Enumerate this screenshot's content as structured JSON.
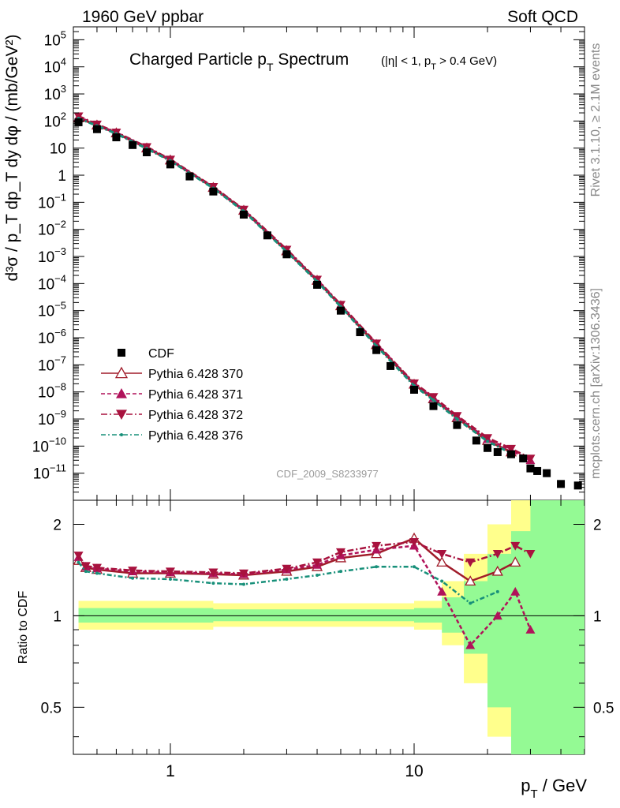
{
  "header": {
    "left": "1960 GeV ppbar",
    "right": "Soft QCD"
  },
  "side_texts": {
    "rivet": "Rivet 3.1.10, ≥ 2.1M events",
    "mcplots": "mcplots.cern.ch [arXiv:1306.3436]"
  },
  "chart_data": [
    {
      "type": "scatter",
      "title": "Charged Particle p_T Spectrum",
      "title_main": "Charged Particle p",
      "title_sub_T": "T",
      "title_suffix": " Spectrum",
      "title_cut": "(|η| < 1, p",
      "title_cut_sub": "T",
      "title_cut_end": " > 0.4 GeV)",
      "ylabel": "d³σ / p_T dp_T dy dφ / (mb/GeV²)",
      "xscale": "log",
      "yscale": "log",
      "xlim": [
        0.4,
        50
      ],
      "ylim": [
        1e-12,
        300000.0
      ],
      "x_ticks": [
        {
          "v": 1,
          "label": "1"
        },
        {
          "v": 10,
          "label": "10"
        }
      ],
      "y_ticks": [
        {
          "v": 100000.0,
          "base": "10",
          "exp": "5"
        },
        {
          "v": 10000.0,
          "base": "10",
          "exp": "4"
        },
        {
          "v": 1000.0,
          "base": "10",
          "exp": "3"
        },
        {
          "v": 100.0,
          "base": "10",
          "exp": "2"
        },
        {
          "v": 10,
          "base": "10",
          "exp": ""
        },
        {
          "v": 1,
          "base": "1",
          "exp": ""
        },
        {
          "v": 0.1,
          "base": "10",
          "exp": "−1"
        },
        {
          "v": 0.01,
          "base": "10",
          "exp": "−2"
        },
        {
          "v": 0.001,
          "base": "10",
          "exp": "−3"
        },
        {
          "v": 0.0001,
          "base": "10",
          "exp": "−4"
        },
        {
          "v": 1e-05,
          "base": "10",
          "exp": "−5"
        },
        {
          "v": 1e-06,
          "base": "10",
          "exp": "−6"
        },
        {
          "v": 1e-07,
          "base": "10",
          "exp": "−7"
        },
        {
          "v": 1e-08,
          "base": "10",
          "exp": "−8"
        },
        {
          "v": 1e-09,
          "base": "10",
          "exp": "−9"
        },
        {
          "v": 1e-10,
          "base": "10",
          "exp": "−10"
        },
        {
          "v": 1e-11,
          "base": "10",
          "exp": "−11"
        }
      ],
      "watermark": "CDF_2009_S8233977",
      "legend_position": "bottom-left",
      "series": [
        {
          "name": "CDF",
          "color": "#000000",
          "marker": "square",
          "x": [
            0.42,
            0.5,
            0.6,
            0.7,
            0.8,
            1.0,
            1.2,
            1.5,
            2.0,
            2.5,
            3.0,
            4.0,
            5.0,
            6.0,
            7.0,
            8.0,
            10.0,
            12.0,
            15.0,
            18.0,
            20.0,
            22.0,
            25.0,
            28.0,
            30.0,
            32.0,
            35.0,
            40.0,
            47.0
          ],
          "y": [
            90,
            50,
            25,
            13,
            7,
            2.5,
            0.9,
            0.25,
            0.035,
            0.006,
            0.0012,
            9e-05,
            1e-05,
            1.6e-06,
            3.5e-07,
            9e-08,
            1.2e-08,
            3e-09,
            6e-10,
            1.6e-10,
            8.5e-11,
            6e-11,
            5e-11,
            3.5e-11,
            1.5e-11,
            1.2e-11,
            1e-11,
            4e-12,
            3.5e-12
          ]
        },
        {
          "name": "Pythia 6.428 370",
          "color": "#a01c2a",
          "marker": "triangle-up-open",
          "x": [
            0.42,
            0.5,
            0.6,
            0.8,
            1.0,
            1.5,
            2.0,
            3.0,
            4.0,
            5.0,
            7.0,
            10.0,
            12.0,
            15.0,
            20.0,
            25.0
          ],
          "y": [
            130,
            70,
            36,
            10,
            3.6,
            0.35,
            0.05,
            0.0016,
            0.00013,
            1.5e-05,
            5.5e-07,
            1.9e-08,
            5.5e-09,
            1.1e-09,
            1.6e-10,
            6e-11
          ]
        },
        {
          "name": "Pythia 6.428 371",
          "color": "#b0125a",
          "marker": "triangle-up",
          "x": [
            0.42,
            0.5,
            0.6,
            0.8,
            1.0,
            1.5,
            2.0,
            3.0,
            4.0,
            5.0,
            7.0,
            10.0,
            12.0,
            15.0,
            20.0,
            25.0,
            30.0
          ],
          "y": [
            140,
            72,
            37,
            10.5,
            3.7,
            0.36,
            0.052,
            0.0017,
            0.000135,
            1.6e-05,
            6e-07,
            2e-08,
            6e-09,
            1.2e-09,
            1.8e-10,
            7e-11,
            3e-11
          ]
        },
        {
          "name": "Pythia 6.428 372",
          "color": "#a8123e",
          "marker": "triangle-down",
          "x": [
            0.42,
            0.5,
            0.6,
            0.8,
            1.0,
            1.5,
            2.0,
            3.0,
            4.0,
            5.0,
            7.0,
            10.0,
            12.0,
            15.0,
            20.0,
            25.0,
            30.0
          ],
          "y": [
            150,
            75,
            38,
            11,
            3.8,
            0.37,
            0.054,
            0.0018,
            0.00014,
            1.65e-05,
            6.2e-07,
            2.1e-08,
            6.5e-09,
            1.3e-09,
            2e-10,
            8e-11,
            3.5e-11
          ]
        },
        {
          "name": "Pythia 6.428 376",
          "color": "#18907a",
          "marker": "dot",
          "x": [
            0.42,
            0.5,
            0.6,
            0.8,
            1.0,
            1.5,
            2.0,
            3.0,
            4.0,
            5.0,
            7.0,
            10.0,
            12.0,
            15.0,
            20.0,
            25.0
          ],
          "y": [
            125,
            67,
            34,
            9.6,
            3.4,
            0.33,
            0.047,
            0.0015,
            0.00012,
            1.4e-05,
            5e-07,
            1.7e-08,
            5e-09,
            1e-09,
            1.5e-10,
            5.5e-11
          ]
        }
      ]
    },
    {
      "type": "line",
      "ylabel": "Ratio to CDF",
      "xlabel": "p_T / GeV",
      "xlabel_main": "p",
      "xlabel_sub": "T",
      "xlabel_suffix": " / GeV",
      "xscale": "log",
      "xlim": [
        0.4,
        50
      ],
      "ylim": [
        0.35,
        2.4
      ],
      "yscale": "log",
      "y_ticks": [
        {
          "v": 2,
          "label": "2"
        },
        {
          "v": 1,
          "label": "1"
        },
        {
          "v": 0.5,
          "label": "0.5"
        }
      ],
      "x_ticks": [
        {
          "v": 1,
          "label": "1"
        },
        {
          "v": 10,
          "label": "10"
        }
      ],
      "band": {
        "x": [
          0.42,
          1.5,
          3,
          6,
          10,
          13,
          16,
          20,
          25,
          30,
          40,
          50
        ],
        "yellow_low": [
          0.9,
          0.92,
          0.92,
          0.92,
          0.9,
          0.8,
          0.6,
          0.4,
          0.3,
          0.2,
          0.2,
          0.2
        ],
        "yellow_high": [
          1.12,
          1.1,
          1.1,
          1.1,
          1.12,
          1.3,
          1.6,
          2.0,
          2.4,
          2.4,
          2.4,
          2.4
        ],
        "green_low": [
          0.95,
          0.96,
          0.96,
          0.96,
          0.95,
          0.88,
          0.75,
          0.5,
          0.35,
          0.25,
          0.2,
          0.2
        ],
        "green_high": [
          1.06,
          1.05,
          1.05,
          1.05,
          1.06,
          1.15,
          1.3,
          1.6,
          1.9,
          2.4,
          2.4,
          2.4
        ]
      },
      "series": [
        {
          "name": "Pythia 6.428 370",
          "color": "#a01c2a",
          "x": [
            0.42,
            0.45,
            0.5,
            0.7,
            1.0,
            1.5,
            2.0,
            3.0,
            4.0,
            5.0,
            7.0,
            10.0,
            13.0,
            17.0,
            22.0,
            26.0
          ],
          "y": [
            1.52,
            1.44,
            1.42,
            1.38,
            1.38,
            1.37,
            1.36,
            1.4,
            1.45,
            1.55,
            1.6,
            1.8,
            1.5,
            1.3,
            1.4,
            1.5
          ]
        },
        {
          "name": "Pythia 6.428 371",
          "color": "#b0125a",
          "x": [
            0.42,
            0.45,
            0.5,
            0.7,
            1.0,
            1.5,
            2.0,
            3.0,
            4.0,
            5.0,
            7.0,
            10.0,
            13.0,
            17.0,
            22.0,
            26.0,
            30.0
          ],
          "y": [
            1.56,
            1.45,
            1.43,
            1.4,
            1.39,
            1.38,
            1.37,
            1.42,
            1.47,
            1.58,
            1.65,
            1.7,
            1.2,
            0.8,
            1.0,
            1.2,
            0.9
          ]
        },
        {
          "name": "Pythia 6.428 372",
          "color": "#a8123e",
          "x": [
            0.42,
            0.45,
            0.5,
            0.7,
            1.0,
            1.5,
            2.0,
            3.0,
            4.0,
            5.0,
            7.0,
            10.0,
            13.0,
            17.0,
            22.0,
            26.0,
            30.0
          ],
          "y": [
            1.58,
            1.46,
            1.44,
            1.41,
            1.4,
            1.39,
            1.38,
            1.43,
            1.5,
            1.62,
            1.7,
            1.75,
            1.6,
            1.5,
            1.6,
            1.7,
            1.6
          ]
        },
        {
          "name": "Pythia 6.428 376",
          "color": "#18907a",
          "x": [
            0.42,
            0.45,
            0.5,
            0.7,
            1.0,
            1.5,
            2.0,
            3.0,
            4.0,
            5.0,
            7.0,
            10.0,
            13.0,
            17.0,
            22.0
          ],
          "y": [
            1.5,
            1.4,
            1.38,
            1.33,
            1.32,
            1.28,
            1.27,
            1.32,
            1.36,
            1.4,
            1.45,
            1.45,
            1.3,
            1.1,
            1.2
          ]
        }
      ]
    }
  ]
}
